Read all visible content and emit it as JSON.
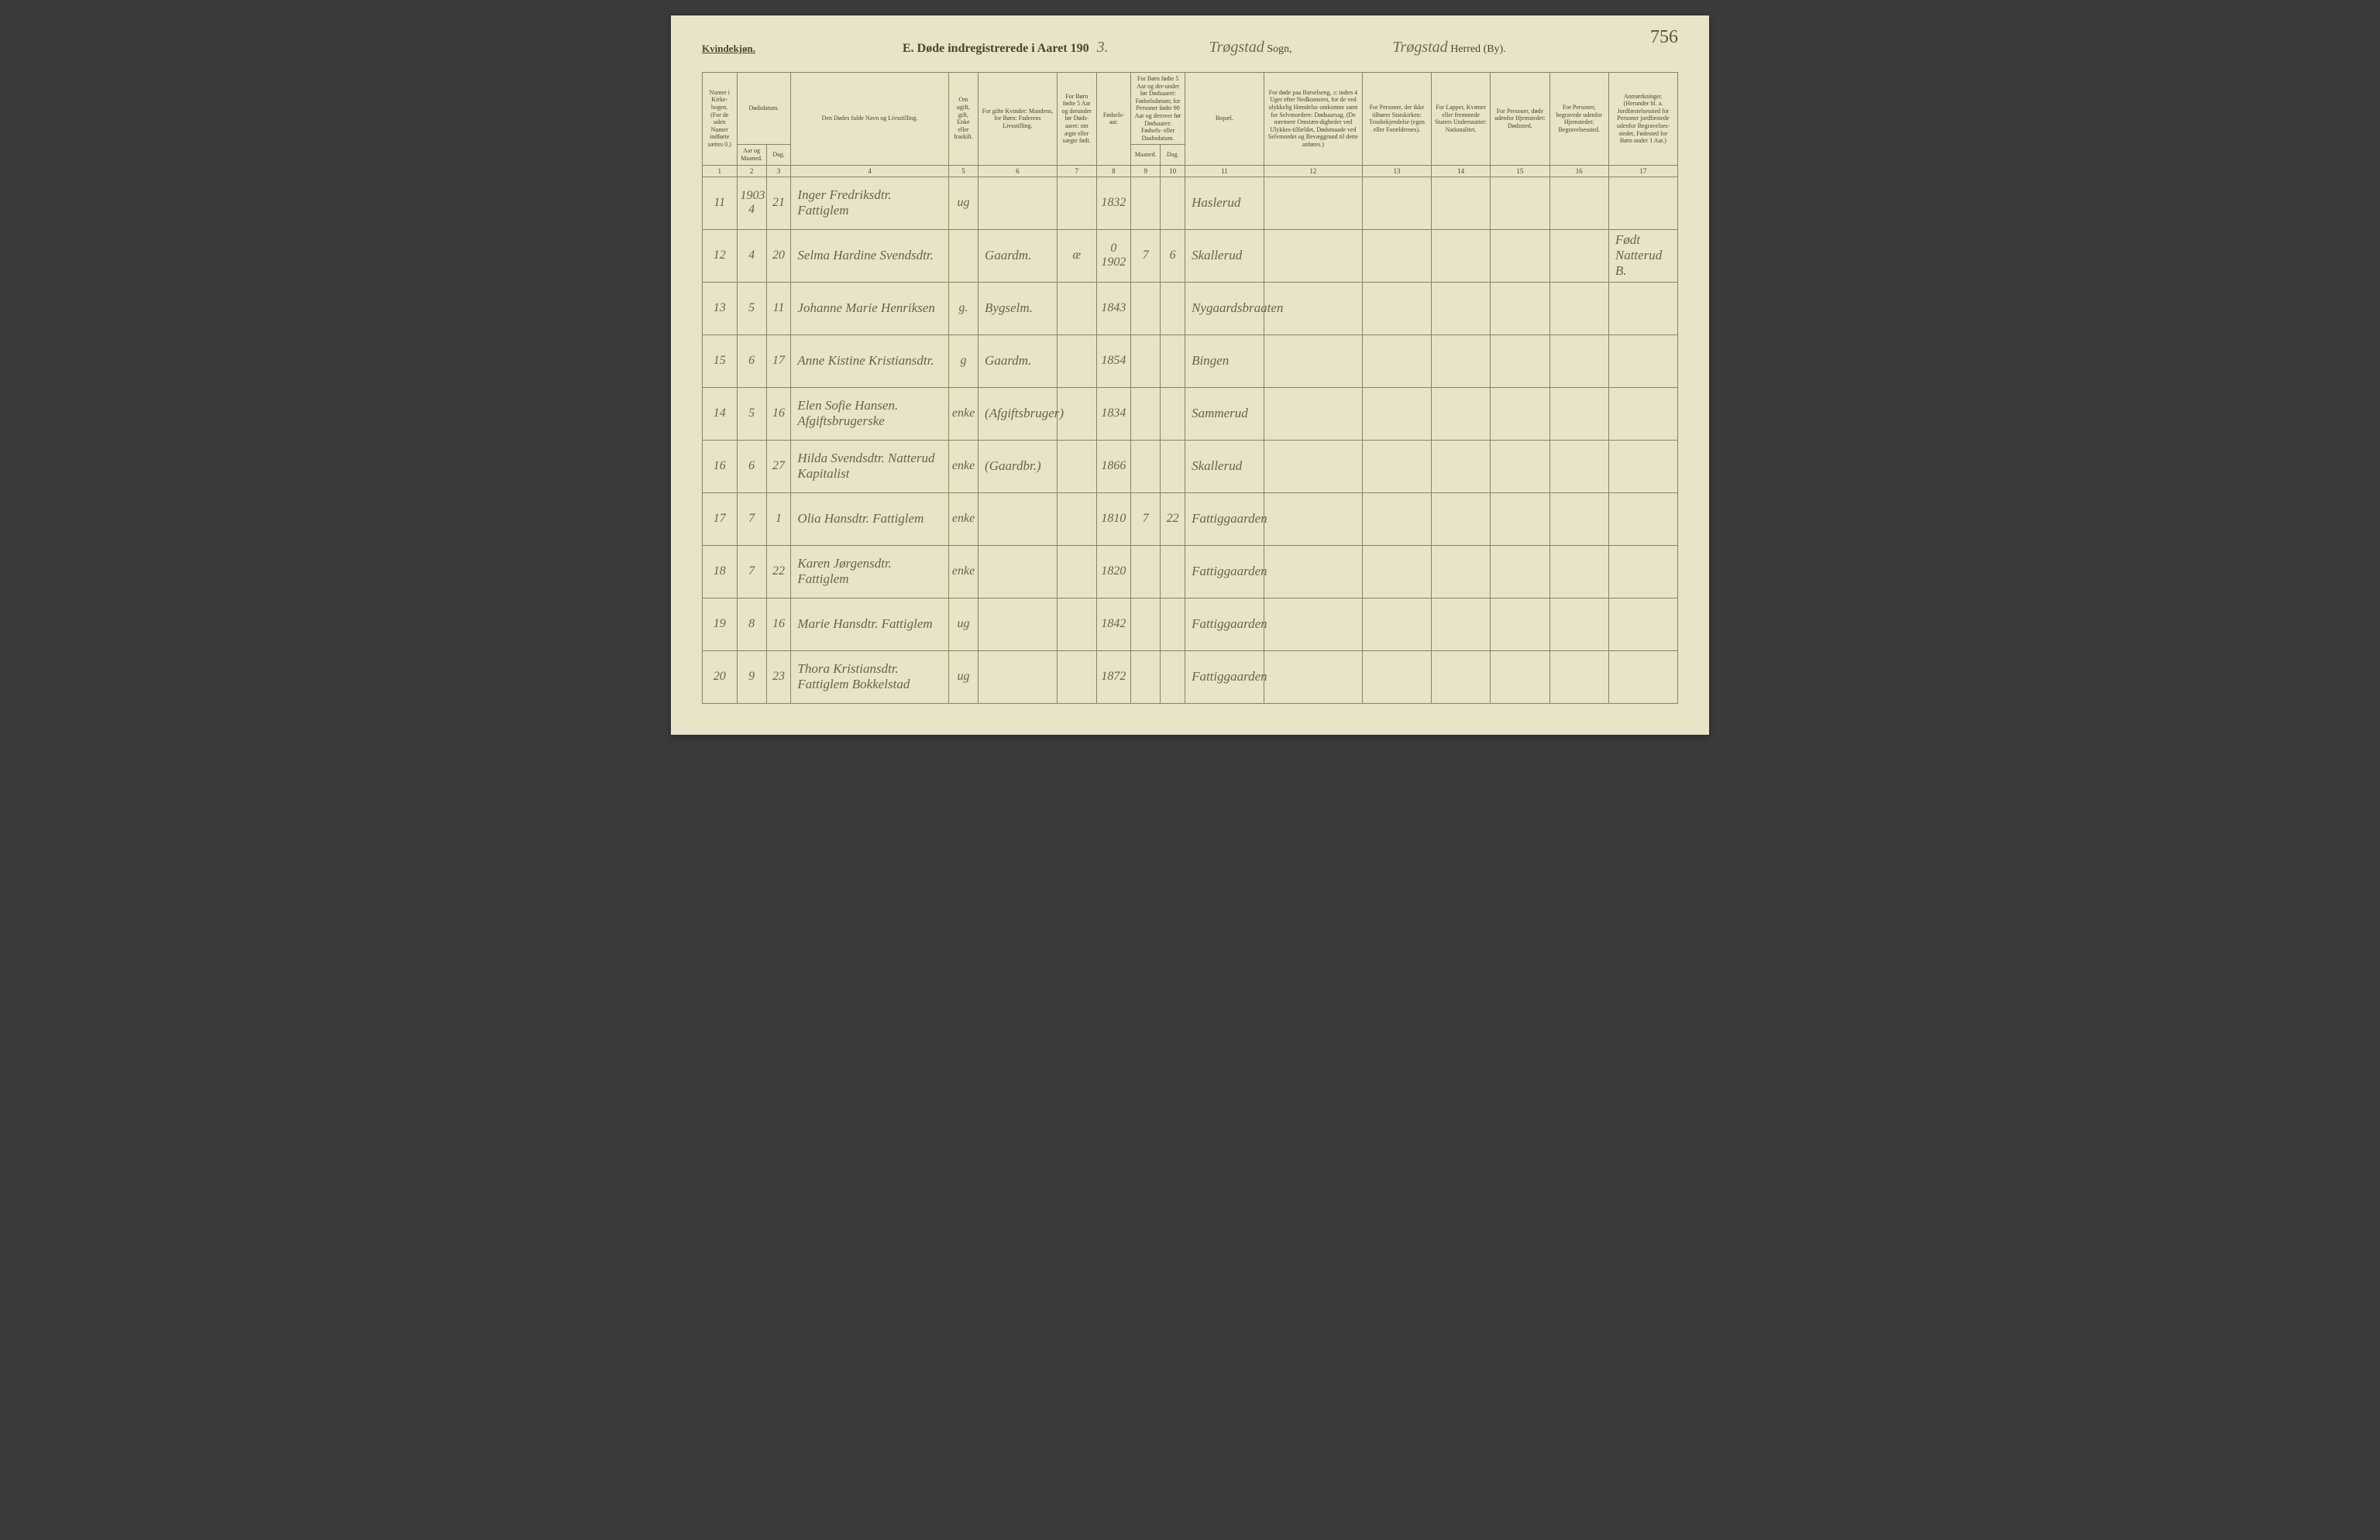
{
  "page_number": "756",
  "header": {
    "kvindekjon": "Kvindekjøn.",
    "title_prefix": "E.  Døde indregistrerede i Aaret 190",
    "year_suffix": "3.",
    "sogn_value": "Trøgstad",
    "sogn_label": "Sogn,",
    "herred_value": "Trøgstad",
    "herred_label": "Herred (By)."
  },
  "columns": {
    "c1": "Numer i Kirke-bogen. (For de uden Numer indførte sættes 0.)",
    "c2_main": "Dødsdatum.",
    "c2_sub1": "Aar og Maaned.",
    "c2_sub2": "Dag.",
    "c4": "Den Dødes fulde Navn og Livsstilling.",
    "c5": "Om ugift, gift, Enke eller fraskilt.",
    "c6": "For gifte Kvinder: Mandens, for Børn: Faderens Livsstilling.",
    "c7": "For Børn fødte 5 Aar og derunder før Døds-aaret: om ægte eller uægte født.",
    "c8": "Fødsels-aar.",
    "c9_main": "For Børn fødte 5 Aar og der-under før Dødsaaret: Fødselsdatum; for Personer fødte 90 Aar og derover før Dødsaaret: Fødsels- eller Daabsdatum.",
    "c9_sub1": "Maaned.",
    "c9_sub2": "Dag.",
    "c11": "Bopæl.",
    "c12": "For døde paa Barselseng, ɔ: inden 4 Uger efter Nedkomsten, for de ved ulykkelig Hændelse omkomne samt for Selvmordere: Dødsaarsag. (De nærmere Omstæn-digheder ved Ulykkes-tilfældet, Dødsmaade ved Selvmordet og Bevæggrund til dette anføres.)",
    "c13": "For Personer, der ikke tilhører Statskirken: Trosbekjendelse (egen eller Forældrenes).",
    "c14": "For Lapper, Kvæner eller fremmede Staters Undersaatter: Nationalitet.",
    "c15": "For Personer, døde udenfor Hjemstedet: Dødssted.",
    "c16": "For Personer, begravede udenfor Hjemstedet: Begravelsessted.",
    "c17": "Anmærkninger. (Herunder bl. a. Jordfæstelsessted for Personer jordfæstede udenfor Begravelses-stedet, Fødested for Børn under 1 Aar.)"
  },
  "colnums": [
    "1",
    "2",
    "3",
    "4",
    "5",
    "6",
    "7",
    "8",
    "9",
    "10",
    "11",
    "12",
    "13",
    "14",
    "15",
    "16",
    "17"
  ],
  "rows": [
    {
      "n": "11",
      "yr": "1903 4",
      "d": "21",
      "name": "Inger Fredriksdtr. Fattiglem",
      "stat": "ug",
      "fader": "",
      "aegte": "",
      "faar": "1832",
      "m": "",
      "dag": "",
      "bopael": "Haslerud",
      "c12": "",
      "c13": "",
      "c14": "",
      "c15": "",
      "c16": "",
      "c17": ""
    },
    {
      "n": "12",
      "yr": "4",
      "d": "20",
      "name": "Selma Hardine Svendsdtr.",
      "stat": "",
      "fader": "Gaardm.",
      "aegte": "æ",
      "faar": "0 1902",
      "m": "7",
      "dag": "6",
      "bopael": "Skallerud",
      "c12": "",
      "c13": "",
      "c14": "",
      "c15": "",
      "c16": "",
      "c17": "Født Natterud B."
    },
    {
      "n": "13",
      "yr": "5",
      "d": "11",
      "name": "Johanne Marie Henriksen",
      "stat": "g.",
      "fader": "Bygselm.",
      "aegte": "",
      "faar": "1843",
      "m": "",
      "dag": "",
      "bopael": "Nygaardsbraaten",
      "c12": "",
      "c13": "",
      "c14": "",
      "c15": "",
      "c16": "",
      "c17": ""
    },
    {
      "n": "15",
      "yr": "6",
      "d": "17",
      "name": "Anne Kistine Kristiansdtr.",
      "stat": "g",
      "fader": "Gaardm.",
      "aegte": "",
      "faar": "1854",
      "m": "",
      "dag": "",
      "bopael": "Bingen",
      "c12": "",
      "c13": "",
      "c14": "",
      "c15": "",
      "c16": "",
      "c17": ""
    },
    {
      "n": "14",
      "yr": "5",
      "d": "16",
      "name": "Elen Sofie Hansen. Afgiftsbrugerske",
      "stat": "enke",
      "fader": "(Afgiftsbruger)",
      "aegte": "",
      "faar": "1834",
      "m": "",
      "dag": "",
      "bopael": "Sammerud",
      "c12": "",
      "c13": "",
      "c14": "",
      "c15": "",
      "c16": "",
      "c17": ""
    },
    {
      "n": "16",
      "yr": "6",
      "d": "27",
      "name": "Hilda Svendsdtr. Natterud Kapitalist",
      "stat": "enke",
      "fader": "(Gaardbr.)",
      "aegte": "",
      "faar": "1866",
      "m": "",
      "dag": "",
      "bopael": "Skallerud",
      "c12": "",
      "c13": "",
      "c14": "",
      "c15": "",
      "c16": "",
      "c17": ""
    },
    {
      "n": "17",
      "yr": "7",
      "d": "1",
      "name": "Olia Hansdtr. Fattiglem",
      "stat": "enke",
      "fader": "",
      "aegte": "",
      "faar": "1810",
      "m": "7",
      "dag": "22",
      "bopael": "Fattiggaarden",
      "c12": "",
      "c13": "",
      "c14": "",
      "c15": "",
      "c16": "",
      "c17": ""
    },
    {
      "n": "18",
      "yr": "7",
      "d": "22",
      "name": "Karen Jørgensdtr. Fattiglem",
      "stat": "enke",
      "fader": "",
      "aegte": "",
      "faar": "1820",
      "m": "",
      "dag": "",
      "bopael": "Fattiggaarden",
      "c12": "",
      "c13": "",
      "c14": "",
      "c15": "",
      "c16": "",
      "c17": ""
    },
    {
      "n": "19",
      "yr": "8",
      "d": "16",
      "name": "Marie Hansdtr. Fattiglem",
      "stat": "ug",
      "fader": "",
      "aegte": "",
      "faar": "1842",
      "m": "",
      "dag": "",
      "bopael": "Fattiggaarden",
      "c12": "",
      "c13": "",
      "c14": "",
      "c15": "",
      "c16": "",
      "c17": ""
    },
    {
      "n": "20",
      "yr": "9",
      "d": "23",
      "name": "Thora Kristiansdtr. Fattiglem Bokkelstad",
      "stat": "ug",
      "fader": "",
      "aegte": "",
      "faar": "1872",
      "m": "",
      "dag": "",
      "bopael": "Fattiggaarden",
      "c12": "",
      "c13": "",
      "c14": "",
      "c15": "",
      "c16": "",
      "c17": ""
    }
  ],
  "colors": {
    "paper": "#e8e4c8",
    "ink": "#4a4530",
    "handwriting": "#6a6248",
    "border": "#8a8260"
  }
}
